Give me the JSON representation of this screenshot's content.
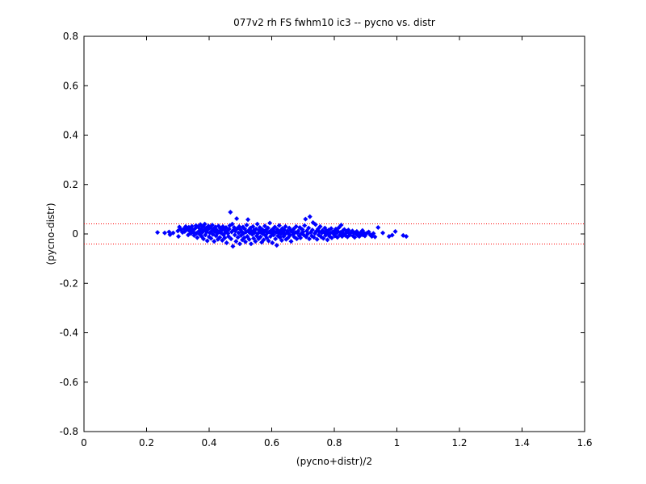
{
  "chart_data": {
    "type": "scatter",
    "title": "077v2 rh FS fwhm10 ic3 -- pycno vs. distr",
    "xlabel": "(pycno+distr)/2",
    "ylabel": "(pycno-distr)",
    "xlim": [
      0,
      1.6
    ],
    "ylim": [
      -0.8,
      0.8
    ],
    "xticks": [
      0,
      0.2,
      0.4,
      0.6,
      0.8,
      1,
      1.2,
      1.4,
      1.6
    ],
    "xtick_labels": [
      "0",
      "0.2",
      "0.4",
      "0.6",
      "0.8",
      "1",
      "1.2",
      "1.4",
      "1.6"
    ],
    "yticks": [
      -0.8,
      -0.6,
      -0.4,
      -0.2,
      0,
      0.2,
      0.4,
      0.6,
      0.8
    ],
    "ytick_labels": [
      "-0.8",
      "-0.6",
      "-0.4",
      "-0.2",
      "0",
      "0.2",
      "0.4",
      "0.6",
      "0.8"
    ],
    "grid": false,
    "marker": "diamond",
    "point_color": "#0000ff",
    "reference_lines": [
      {
        "orientation": "horizontal",
        "y": 0.041,
        "style": "dotted",
        "color": "#ff0000"
      },
      {
        "orientation": "horizontal",
        "y": -0.041,
        "style": "dotted",
        "color": "#ff0000"
      }
    ],
    "series": [
      {
        "points": [
          [
            0.235,
            0.006
          ],
          [
            0.258,
            0.004
          ],
          [
            0.272,
            0.008
          ],
          [
            0.275,
            -0.003
          ],
          [
            0.285,
            0.004
          ],
          [
            0.3,
            0.012
          ],
          [
            0.302,
            -0.01
          ],
          [
            0.305,
            0.028
          ],
          [
            0.308,
            0.02
          ],
          [
            0.31,
            0.016
          ],
          [
            0.315,
            0.006
          ],
          [
            0.32,
            0.022
          ],
          [
            0.322,
            0.01
          ],
          [
            0.325,
            0.03
          ],
          [
            0.33,
            0.018
          ],
          [
            0.333,
            -0.004
          ],
          [
            0.335,
            0.027
          ],
          [
            0.338,
            0.011
          ],
          [
            0.34,
            0.024
          ],
          [
            0.342,
            0.002
          ],
          [
            0.345,
            0.031
          ],
          [
            0.348,
            0.016
          ],
          [
            0.35,
            0.008
          ],
          [
            0.352,
            -0.006
          ],
          [
            0.355,
            0.022
          ],
          [
            0.358,
            0.034
          ],
          [
            0.36,
            0.003
          ],
          [
            0.362,
            -0.015
          ],
          [
            0.365,
            0.028
          ],
          [
            0.368,
            0.012
          ],
          [
            0.37,
            -0.002
          ],
          [
            0.372,
            0.038
          ],
          [
            0.374,
            0.02
          ],
          [
            0.376,
            -0.01
          ],
          [
            0.378,
            0.006
          ],
          [
            0.38,
            0.03
          ],
          [
            0.382,
            -0.02
          ],
          [
            0.384,
            0.015
          ],
          [
            0.386,
            0.04
          ],
          [
            0.388,
            -0.004
          ],
          [
            0.39,
            0.024
          ],
          [
            0.392,
            0.008
          ],
          [
            0.394,
            -0.028
          ],
          [
            0.396,
            0.018
          ],
          [
            0.398,
            0.032
          ],
          [
            0.4,
            -0.012
          ],
          [
            0.402,
            0.004
          ],
          [
            0.404,
            0.026
          ],
          [
            0.406,
            -0.018
          ],
          [
            0.408,
            0.012
          ],
          [
            0.41,
            0.036
          ],
          [
            0.412,
            -0.002
          ],
          [
            0.414,
            0.02
          ],
          [
            0.416,
            -0.03
          ],
          [
            0.418,
            0.01
          ],
          [
            0.42,
            0.028
          ],
          [
            0.422,
            -0.008
          ],
          [
            0.424,
            0.016
          ],
          [
            0.426,
            0.002
          ],
          [
            0.428,
            -0.022
          ],
          [
            0.43,
            0.032
          ],
          [
            0.432,
            0.008
          ],
          [
            0.434,
            -0.014
          ],
          [
            0.436,
            0.022
          ],
          [
            0.438,
            0.004
          ],
          [
            0.44,
            0.014
          ],
          [
            0.442,
            -0.026
          ],
          [
            0.444,
            0.03
          ],
          [
            0.446,
            -0.004
          ],
          [
            0.448,
            0.018
          ],
          [
            0.45,
            -0.016
          ],
          [
            0.452,
            0.006
          ],
          [
            0.454,
            0.026
          ],
          [
            0.456,
            -0.036
          ],
          [
            0.458,
            0.012
          ],
          [
            0.46,
            0.002
          ],
          [
            0.462,
            -0.01
          ],
          [
            0.464,
            0.02
          ],
          [
            0.466,
            0.034
          ],
          [
            0.468,
            0.088
          ],
          [
            0.47,
            -0.02
          ],
          [
            0.472,
            0.008
          ],
          [
            0.474,
            0.04
          ],
          [
            0.476,
            -0.05
          ],
          [
            0.478,
            0.016
          ],
          [
            0.48,
            0.026
          ],
          [
            0.482,
            -0.004
          ],
          [
            0.484,
            0.012
          ],
          [
            0.486,
            -0.03
          ],
          [
            0.488,
            0.062
          ],
          [
            0.49,
            0.022
          ],
          [
            0.492,
            -0.014
          ],
          [
            0.494,
            0.004
          ],
          [
            0.496,
            0.03
          ],
          [
            0.498,
            -0.04
          ],
          [
            0.5,
            0.018
          ],
          [
            0.502,
            -0.006
          ],
          [
            0.504,
            0.01
          ],
          [
            0.506,
            -0.024
          ],
          [
            0.508,
            0.028
          ],
          [
            0.51,
            0.002
          ],
          [
            0.512,
            -0.016
          ],
          [
            0.514,
            0.02
          ],
          [
            0.516,
            -0.032
          ],
          [
            0.518,
            0.008
          ],
          [
            0.52,
            0.036
          ],
          [
            0.522,
            -0.01
          ],
          [
            0.524,
            0.058
          ],
          [
            0.526,
            0.014
          ],
          [
            0.528,
            -0.022
          ],
          [
            0.53,
            0.004
          ],
          [
            0.532,
            0.024
          ],
          [
            0.534,
            -0.04
          ],
          [
            0.536,
            0.01
          ],
          [
            0.538,
            -0.002
          ],
          [
            0.54,
            0.03
          ],
          [
            0.542,
            -0.018
          ],
          [
            0.544,
            0.016
          ],
          [
            0.546,
            0.006
          ],
          [
            0.548,
            -0.03
          ],
          [
            0.55,
            0.02
          ],
          [
            0.552,
            -0.008
          ],
          [
            0.554,
            0.04
          ],
          [
            0.556,
            0.002
          ],
          [
            0.558,
            -0.02
          ],
          [
            0.56,
            0.014
          ],
          [
            0.562,
            0.026
          ],
          [
            0.564,
            -0.012
          ],
          [
            0.566,
            0.006
          ],
          [
            0.568,
            -0.034
          ],
          [
            0.57,
            0.018
          ],
          [
            0.572,
            0.0
          ],
          [
            0.574,
            -0.024
          ],
          [
            0.576,
            0.01
          ],
          [
            0.578,
            0.032
          ],
          [
            0.58,
            -0.006
          ],
          [
            0.582,
            0.016
          ],
          [
            0.584,
            -0.016
          ],
          [
            0.586,
            0.004
          ],
          [
            0.588,
            0.024
          ],
          [
            0.59,
            -0.028
          ],
          [
            0.592,
            0.008
          ],
          [
            0.594,
            0.044
          ],
          [
            0.596,
            -0.01
          ],
          [
            0.598,
            0.014
          ],
          [
            0.6,
            0.002
          ],
          [
            0.602,
            -0.036
          ],
          [
            0.604,
            0.02
          ],
          [
            0.606,
            -0.004
          ],
          [
            0.608,
            0.01
          ],
          [
            0.61,
            0.028
          ],
          [
            0.612,
            -0.02
          ],
          [
            0.614,
            0.006
          ],
          [
            0.616,
            -0.046
          ],
          [
            0.618,
            0.018
          ],
          [
            0.62,
            -0.008
          ],
          [
            0.622,
            0.004
          ],
          [
            0.624,
            0.034
          ],
          [
            0.626,
            -0.014
          ],
          [
            0.628,
            0.012
          ],
          [
            0.63,
            0.0
          ],
          [
            0.632,
            -0.026
          ],
          [
            0.634,
            0.022
          ],
          [
            0.636,
            0.008
          ],
          [
            0.638,
            -0.01
          ],
          [
            0.64,
            0.016
          ],
          [
            0.642,
            -0.002
          ],
          [
            0.644,
            0.03
          ],
          [
            0.646,
            -0.022
          ],
          [
            0.648,
            0.004
          ],
          [
            0.65,
            0.012
          ],
          [
            0.652,
            -0.016
          ],
          [
            0.654,
            0.002
          ],
          [
            0.656,
            0.024
          ],
          [
            0.658,
            -0.006
          ],
          [
            0.66,
            0.014
          ],
          [
            0.662,
            -0.03
          ],
          [
            0.665,
            0.008
          ],
          [
            0.668,
            -0.002
          ],
          [
            0.67,
            0.02
          ],
          [
            0.672,
            -0.012
          ],
          [
            0.675,
            0.006
          ],
          [
            0.678,
            0.03
          ],
          [
            0.68,
            -0.02
          ],
          [
            0.682,
            0.004
          ],
          [
            0.685,
            0.012
          ],
          [
            0.688,
            -0.008
          ],
          [
            0.69,
            0.026
          ],
          [
            0.692,
            -0.016
          ],
          [
            0.695,
            0.002
          ],
          [
            0.698,
            0.018
          ],
          [
            0.7,
            0.008
          ],
          [
            0.702,
            -0.004
          ],
          [
            0.705,
            0.034
          ],
          [
            0.708,
            0.06
          ],
          [
            0.71,
            -0.012
          ],
          [
            0.712,
            0.012
          ],
          [
            0.715,
            0.0
          ],
          [
            0.718,
            0.024
          ],
          [
            0.72,
            -0.02
          ],
          [
            0.722,
            0.07
          ],
          [
            0.725,
            0.006
          ],
          [
            0.728,
            -0.008
          ],
          [
            0.73,
            0.016
          ],
          [
            0.732,
            0.046
          ],
          [
            0.735,
            -0.014
          ],
          [
            0.738,
            0.002
          ],
          [
            0.74,
            0.038
          ],
          [
            0.742,
            0.01
          ],
          [
            0.745,
            -0.022
          ],
          [
            0.748,
            0.02
          ],
          [
            0.75,
            -0.004
          ],
          [
            0.752,
            0.008
          ],
          [
            0.755,
            0.03
          ],
          [
            0.758,
            -0.012
          ],
          [
            0.76,
            0.004
          ],
          [
            0.762,
            0.014
          ],
          [
            0.765,
            -0.018
          ],
          [
            0.768,
            0.006
          ],
          [
            0.77,
            0.024
          ],
          [
            0.772,
            -0.006
          ],
          [
            0.775,
            0.012
          ],
          [
            0.778,
            -0.024
          ],
          [
            0.78,
            0.002
          ],
          [
            0.782,
            0.016
          ],
          [
            0.785,
            -0.01
          ],
          [
            0.788,
            0.004
          ],
          [
            0.79,
            0.022
          ],
          [
            0.792,
            -0.016
          ],
          [
            0.795,
            0.008
          ],
          [
            0.798,
            0.0
          ],
          [
            0.8,
            0.012
          ],
          [
            0.802,
            -0.008
          ],
          [
            0.805,
            0.02
          ],
          [
            0.808,
            0.004
          ],
          [
            0.81,
            -0.014
          ],
          [
            0.812,
            0.01
          ],
          [
            0.815,
            0.026
          ],
          [
            0.818,
            -0.004
          ],
          [
            0.82,
            0.006
          ],
          [
            0.822,
            0.036
          ],
          [
            0.825,
            -0.01
          ],
          [
            0.828,
            0.014
          ],
          [
            0.83,
            0.0
          ],
          [
            0.832,
            0.018
          ],
          [
            0.835,
            -0.006
          ],
          [
            0.838,
            0.004
          ],
          [
            0.84,
            0.01
          ],
          [
            0.842,
            -0.012
          ],
          [
            0.845,
            0.016
          ],
          [
            0.848,
            0.002
          ],
          [
            0.85,
            -0.004
          ],
          [
            0.855,
            0.008
          ],
          [
            0.858,
            0.012
          ],
          [
            0.86,
            -0.008
          ],
          [
            0.862,
            0.004
          ],
          [
            0.865,
            -0.014
          ],
          [
            0.868,
            0.006
          ],
          [
            0.87,
            0.0
          ],
          [
            0.872,
            0.01
          ],
          [
            0.875,
            -0.006
          ],
          [
            0.878,
            0.002
          ],
          [
            0.88,
            -0.01
          ],
          [
            0.885,
            0.006
          ],
          [
            0.888,
            -0.002
          ],
          [
            0.89,
            0.014
          ],
          [
            0.892,
            -0.004
          ],
          [
            0.895,
            0.004
          ],
          [
            0.898,
            -0.008
          ],
          [
            0.9,
            0.0
          ],
          [
            0.905,
            0.004
          ],
          [
            0.91,
            0.008
          ],
          [
            0.915,
            -0.004
          ],
          [
            0.92,
            -0.01
          ],
          [
            0.925,
            0.002
          ],
          [
            0.93,
            -0.012
          ],
          [
            0.94,
            0.026
          ],
          [
            0.955,
            0.004
          ],
          [
            0.975,
            -0.01
          ],
          [
            0.985,
            -0.005
          ],
          [
            0.995,
            0.01
          ],
          [
            1.02,
            -0.006
          ],
          [
            1.03,
            -0.01
          ]
        ]
      }
    ]
  }
}
